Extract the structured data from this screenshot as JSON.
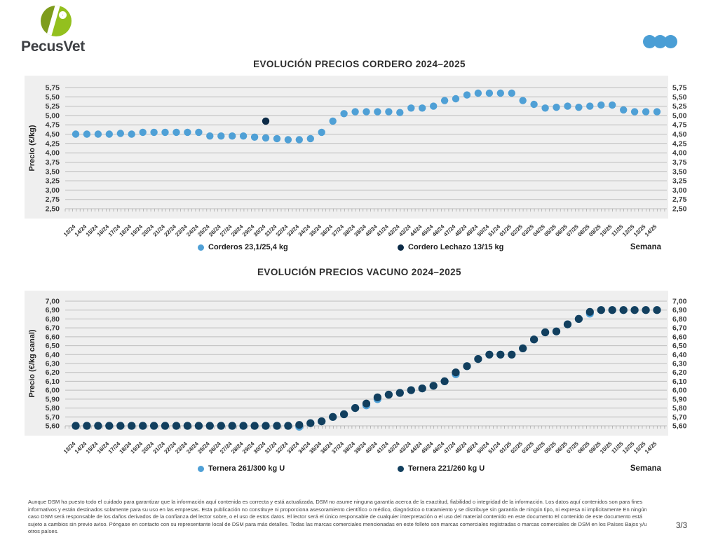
{
  "brand": {
    "name": "PecusVet"
  },
  "style": {
    "panel_bg": "#EFEFEF",
    "gridline": "#BDBDBD",
    "baseline": "#A0A0A0",
    "accent_blue": "#4A9ED5",
    "logo_green_dark": "#7E9C1C",
    "logo_green_light": "#93C01E"
  },
  "chart_data": [
    {
      "type": "scatter",
      "title": "EVOLUCIÓN PRECIOS CORDERO 2024–2025",
      "ylabel": "Precio (€/kg)",
      "xlabel": "Semana",
      "ylim": [
        2.5,
        5.75
      ],
      "grid": true,
      "legend_position": "bottom",
      "yticks": [
        "5,75",
        "5,50",
        "5,25",
        "5,00",
        "4,75",
        "4,50",
        "4,25",
        "4,00",
        "3,75",
        "3,50",
        "3,25",
        "3,00",
        "2,75",
        "2,50"
      ],
      "categories": [
        "13/24",
        "14/24",
        "15/24",
        "16/24",
        "17/24",
        "18/24",
        "19/24",
        "20/24",
        "21/24",
        "22/24",
        "23/24",
        "24/24",
        "25/24",
        "26/24",
        "27/24",
        "28/24",
        "29/24",
        "30/24",
        "31/24",
        "32/24",
        "33/24",
        "34/24",
        "35/24",
        "36/24",
        "37/24",
        "38/24",
        "39/24",
        "40/24",
        "41/24",
        "42/24",
        "43/24",
        "44/24",
        "45/24",
        "46/24",
        "47/24",
        "48/24",
        "49/24",
        "50/24",
        "51/24",
        "01/25",
        "02/25",
        "03/25",
        "04/25",
        "05/25",
        "06/25",
        "07/25",
        "08/25",
        "09/25",
        "10/25",
        "11/25",
        "12/25",
        "13/25",
        "14/25"
      ],
      "series": [
        {
          "name": "Corderos 23,1/25,4 kg",
          "color": "#4FA0D6",
          "values": [
            4.5,
            4.5,
            4.5,
            4.5,
            4.52,
            4.5,
            4.55,
            4.55,
            4.55,
            4.55,
            4.55,
            4.55,
            4.45,
            4.45,
            4.45,
            4.45,
            4.42,
            4.4,
            4.38,
            4.35,
            4.35,
            4.38,
            4.55,
            4.85,
            5.05,
            5.1,
            5.1,
            5.1,
            5.1,
            5.08,
            5.2,
            5.2,
            5.25,
            5.4,
            5.45,
            5.55,
            5.6,
            5.6,
            5.6,
            5.6,
            5.4,
            5.3,
            5.2,
            5.22,
            5.25,
            5.22,
            5.25,
            5.28,
            5.28,
            5.15,
            5.1,
            5.1,
            5.1
          ]
        },
        {
          "name": "Cordero Lechazo 13/15 kg",
          "color": "#0C2B47",
          "values": [
            null,
            null,
            null,
            null,
            null,
            null,
            null,
            null,
            null,
            null,
            null,
            null,
            null,
            null,
            null,
            null,
            null,
            4.85,
            null,
            null,
            null,
            null,
            null,
            null,
            null,
            null,
            null,
            null,
            null,
            null,
            null,
            null,
            null,
            null,
            null,
            null,
            null,
            null,
            null,
            null,
            null,
            null,
            null,
            null,
            null,
            null,
            null,
            null,
            null,
            null,
            null,
            null,
            null
          ]
        }
      ]
    },
    {
      "type": "scatter",
      "title": "EVOLUCIÓN PRECIOS VACUNO 2024–2025",
      "ylabel": "Precio (€/kg canal)",
      "xlabel": "Semana",
      "ylim": [
        5.6,
        7.0
      ],
      "grid": true,
      "legend_position": "bottom",
      "yticks": [
        "7,00",
        "6,90",
        "6,80",
        "6,70",
        "6,60",
        "6,50",
        "6,40",
        "6,30",
        "6,20",
        "6,10",
        "6,00",
        "5,90",
        "5,80",
        "5,70",
        "5,60"
      ],
      "categories": [
        "13/24",
        "14/24",
        "15/24",
        "16/24",
        "17/24",
        "18/24",
        "19/24",
        "20/24",
        "21/24",
        "22/24",
        "23/24",
        "24/24",
        "25/24",
        "26/24",
        "27/24",
        "28/24",
        "29/24",
        "30/24",
        "31/24",
        "32/24",
        "33/24",
        "34/24",
        "35/24",
        "36/24",
        "37/24",
        "38/24",
        "39/24",
        "40/24",
        "41/24",
        "42/24",
        "43/24",
        "44/24",
        "45/24",
        "46/24",
        "47/24",
        "48/24",
        "49/24",
        "50/24",
        "51/24",
        "01/25",
        "02/25",
        "03/25",
        "04/25",
        "05/25",
        "06/25",
        "07/25",
        "08/25",
        "09/25",
        "10/25",
        "11/25",
        "12/25",
        "13/25",
        "14/25"
      ],
      "series": [
        {
          "name": "Ternera 261/300 kg U",
          "color": "#4FA0D6",
          "values": [
            5.6,
            5.6,
            5.6,
            5.6,
            5.6,
            5.6,
            5.6,
            5.6,
            5.6,
            5.6,
            5.6,
            5.6,
            5.6,
            5.6,
            5.6,
            5.6,
            5.6,
            5.6,
            5.6,
            5.6,
            5.59,
            5.63,
            5.65,
            5.7,
            5.73,
            5.8,
            5.83,
            5.9,
            5.95,
            5.97,
            6.0,
            6.02,
            6.05,
            6.1,
            6.18,
            6.27,
            6.35,
            6.4,
            6.4,
            6.4,
            6.47,
            6.57,
            6.65,
            6.66,
            6.74,
            6.8,
            6.86,
            6.9,
            6.9,
            6.9,
            6.9,
            6.9,
            6.9
          ]
        },
        {
          "name": "Ternera 221/260 kg U",
          "color": "#123F5E",
          "values": [
            5.6,
            5.6,
            5.6,
            5.6,
            5.6,
            5.6,
            5.6,
            5.6,
            5.6,
            5.6,
            5.6,
            5.6,
            5.6,
            5.6,
            5.6,
            5.6,
            5.6,
            5.6,
            5.6,
            5.6,
            5.61,
            5.63,
            5.65,
            5.7,
            5.73,
            5.8,
            5.85,
            5.92,
            5.95,
            5.97,
            6.0,
            6.02,
            6.05,
            6.1,
            6.2,
            6.27,
            6.35,
            6.4,
            6.4,
            6.4,
            6.47,
            6.57,
            6.65,
            6.66,
            6.74,
            6.8,
            6.88,
            6.9,
            6.9,
            6.9,
            6.9,
            6.9,
            6.9
          ]
        }
      ]
    }
  ],
  "footer": {
    "disclaimer": "Aunque DSM ha puesto todo el cuidado para garantizar que la información aquí contenida es correcta y está actualizada, DSM no asume ninguna garantía acerca de la exactitud, fiabilidad o integridad de la información. Los datos aquí contenidos son para fines informativos y están destinados solamente para su uso en las empresas. Esta publicación no constituye ni proporciona asesoramiento científico o médico, diagnóstico o tratamiento y se distribuye sin garantía de ningún tipo, ni expresa ni implícitamente En ningún caso DSM será responsable de los daños derivados de la confianza del lector sobre, o el uso de estos datos. El lector será el único responsable de cualquier interpretación o el uso del material contenido en este documento El contenido de este documento está sujeto a cambios sin previo aviso. Póngase en contacto con su representante local de DSM para más detalles. Todas las marcas comerciales mencionadas en este folleto son marcas comerciales registradas o marcas comerciales de DSM en los Países Bajos y/u otros países.",
    "page_number": "3/3"
  }
}
